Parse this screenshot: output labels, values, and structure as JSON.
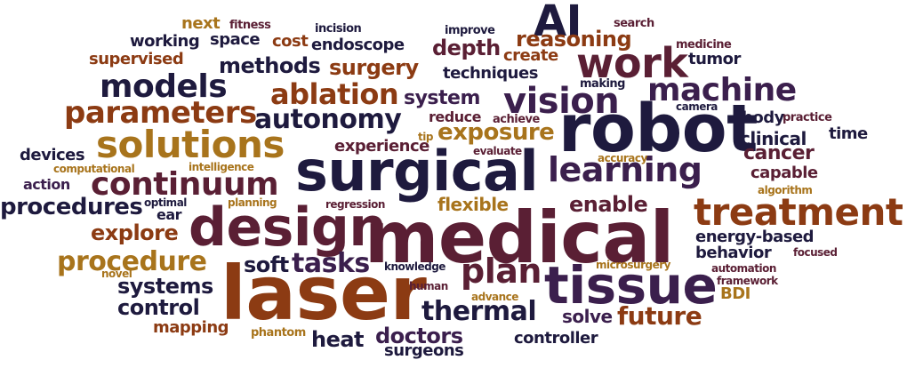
{
  "palette": {
    "navy": "#1e1a3e",
    "plum": "#3b1f4d",
    "maroon": "#5a1f34",
    "rust": "#8c3b13",
    "ochre": "#a8741c",
    "wine": "#6e2431"
  },
  "words": [
    {
      "text": "laser",
      "color": "rust"
    },
    {
      "text": "medical",
      "color": "maroon"
    },
    {
      "text": "surgical",
      "color": "navy"
    },
    {
      "text": "robot",
      "color": "navy"
    },
    {
      "text": "design",
      "color": "maroon"
    },
    {
      "text": "tissue",
      "color": "plum"
    },
    {
      "text": "treatment",
      "color": "rust"
    },
    {
      "text": "solutions",
      "color": "ochre"
    },
    {
      "text": "machine",
      "color": "plum"
    },
    {
      "text": "vision",
      "color": "plum"
    },
    {
      "text": "work",
      "color": "maroon"
    },
    {
      "text": "AI",
      "color": "navy"
    },
    {
      "text": "continuum",
      "color": "maroon"
    },
    {
      "text": "learning",
      "color": "plum"
    },
    {
      "text": "models",
      "color": "navy"
    },
    {
      "text": "plan",
      "color": "maroon"
    },
    {
      "text": "parameters",
      "color": "rust"
    },
    {
      "text": "ablation",
      "color": "rust"
    },
    {
      "text": "autonomy",
      "color": "navy"
    },
    {
      "text": "procedure",
      "color": "ochre"
    },
    {
      "text": "thermal",
      "color": "navy"
    },
    {
      "text": "procedures",
      "color": "navy"
    },
    {
      "text": "tasks",
      "color": "plum"
    },
    {
      "text": "reasoning",
      "color": "rust"
    },
    {
      "text": "future",
      "color": "rust"
    },
    {
      "text": "methods",
      "color": "navy"
    },
    {
      "text": "surgery",
      "color": "rust"
    },
    {
      "text": "exposure",
      "color": "ochre"
    },
    {
      "text": "system",
      "color": "plum"
    },
    {
      "text": "depth",
      "color": "maroon"
    },
    {
      "text": "enable",
      "color": "maroon"
    },
    {
      "text": "explore",
      "color": "rust"
    },
    {
      "text": "doctors",
      "color": "plum"
    },
    {
      "text": "heat",
      "color": "navy"
    },
    {
      "text": "control",
      "color": "navy"
    },
    {
      "text": "systems",
      "color": "navy"
    },
    {
      "text": "soft",
      "color": "navy"
    },
    {
      "text": "cancer",
      "color": "maroon"
    },
    {
      "text": "clinical",
      "color": "navy"
    },
    {
      "text": "flexible",
      "color": "ochre"
    },
    {
      "text": "solve",
      "color": "plum"
    },
    {
      "text": "experience",
      "color": "maroon"
    },
    {
      "text": "energy-based",
      "color": "navy"
    },
    {
      "text": "behavior",
      "color": "navy"
    },
    {
      "text": "capable",
      "color": "maroon"
    },
    {
      "text": "body",
      "color": "navy"
    },
    {
      "text": "time",
      "color": "navy"
    },
    {
      "text": "techniques",
      "color": "navy"
    },
    {
      "text": "working",
      "color": "navy"
    },
    {
      "text": "space",
      "color": "navy"
    },
    {
      "text": "cost",
      "color": "rust"
    },
    {
      "text": "endoscope",
      "color": "navy"
    },
    {
      "text": "create",
      "color": "rust"
    },
    {
      "text": "supervised",
      "color": "rust"
    },
    {
      "text": "tumor",
      "color": "navy"
    },
    {
      "text": "next",
      "color": "ochre"
    },
    {
      "text": "devices",
      "color": "navy"
    },
    {
      "text": "action",
      "color": "plum"
    },
    {
      "text": "mapping",
      "color": "rust"
    },
    {
      "text": "controller",
      "color": "navy"
    },
    {
      "text": "surgeons",
      "color": "navy"
    },
    {
      "text": "reduce",
      "color": "maroon"
    },
    {
      "text": "ear",
      "color": "navy"
    },
    {
      "text": "BDI",
      "color": "ochre"
    },
    {
      "text": "fitness",
      "color": "maroon"
    },
    {
      "text": "incision",
      "color": "navy"
    },
    {
      "text": "improve",
      "color": "navy"
    },
    {
      "text": "search",
      "color": "maroon"
    },
    {
      "text": "medicine",
      "color": "maroon"
    },
    {
      "text": "making",
      "color": "navy"
    },
    {
      "text": "camera",
      "color": "navy"
    },
    {
      "text": "achieve",
      "color": "maroon"
    },
    {
      "text": "practice",
      "color": "maroon"
    },
    {
      "text": "tip",
      "color": "ochre"
    },
    {
      "text": "evaluate",
      "color": "maroon"
    },
    {
      "text": "accuracy",
      "color": "ochre"
    },
    {
      "text": "computational",
      "color": "ochre"
    },
    {
      "text": "intelligence",
      "color": "ochre"
    },
    {
      "text": "optimal",
      "color": "navy"
    },
    {
      "text": "planning",
      "color": "ochre"
    },
    {
      "text": "regression",
      "color": "maroon"
    },
    {
      "text": "algorithm",
      "color": "ochre"
    },
    {
      "text": "knowledge",
      "color": "navy"
    },
    {
      "text": "microsurgery",
      "color": "ochre"
    },
    {
      "text": "automation",
      "color": "maroon"
    },
    {
      "text": "focused",
      "color": "maroon"
    },
    {
      "text": "framework",
      "color": "maroon"
    },
    {
      "text": "novel",
      "color": "ochre"
    },
    {
      "text": "human",
      "color": "maroon"
    },
    {
      "text": "advance",
      "color": "ochre"
    },
    {
      "text": "phantom",
      "color": "ochre"
    }
  ]
}
